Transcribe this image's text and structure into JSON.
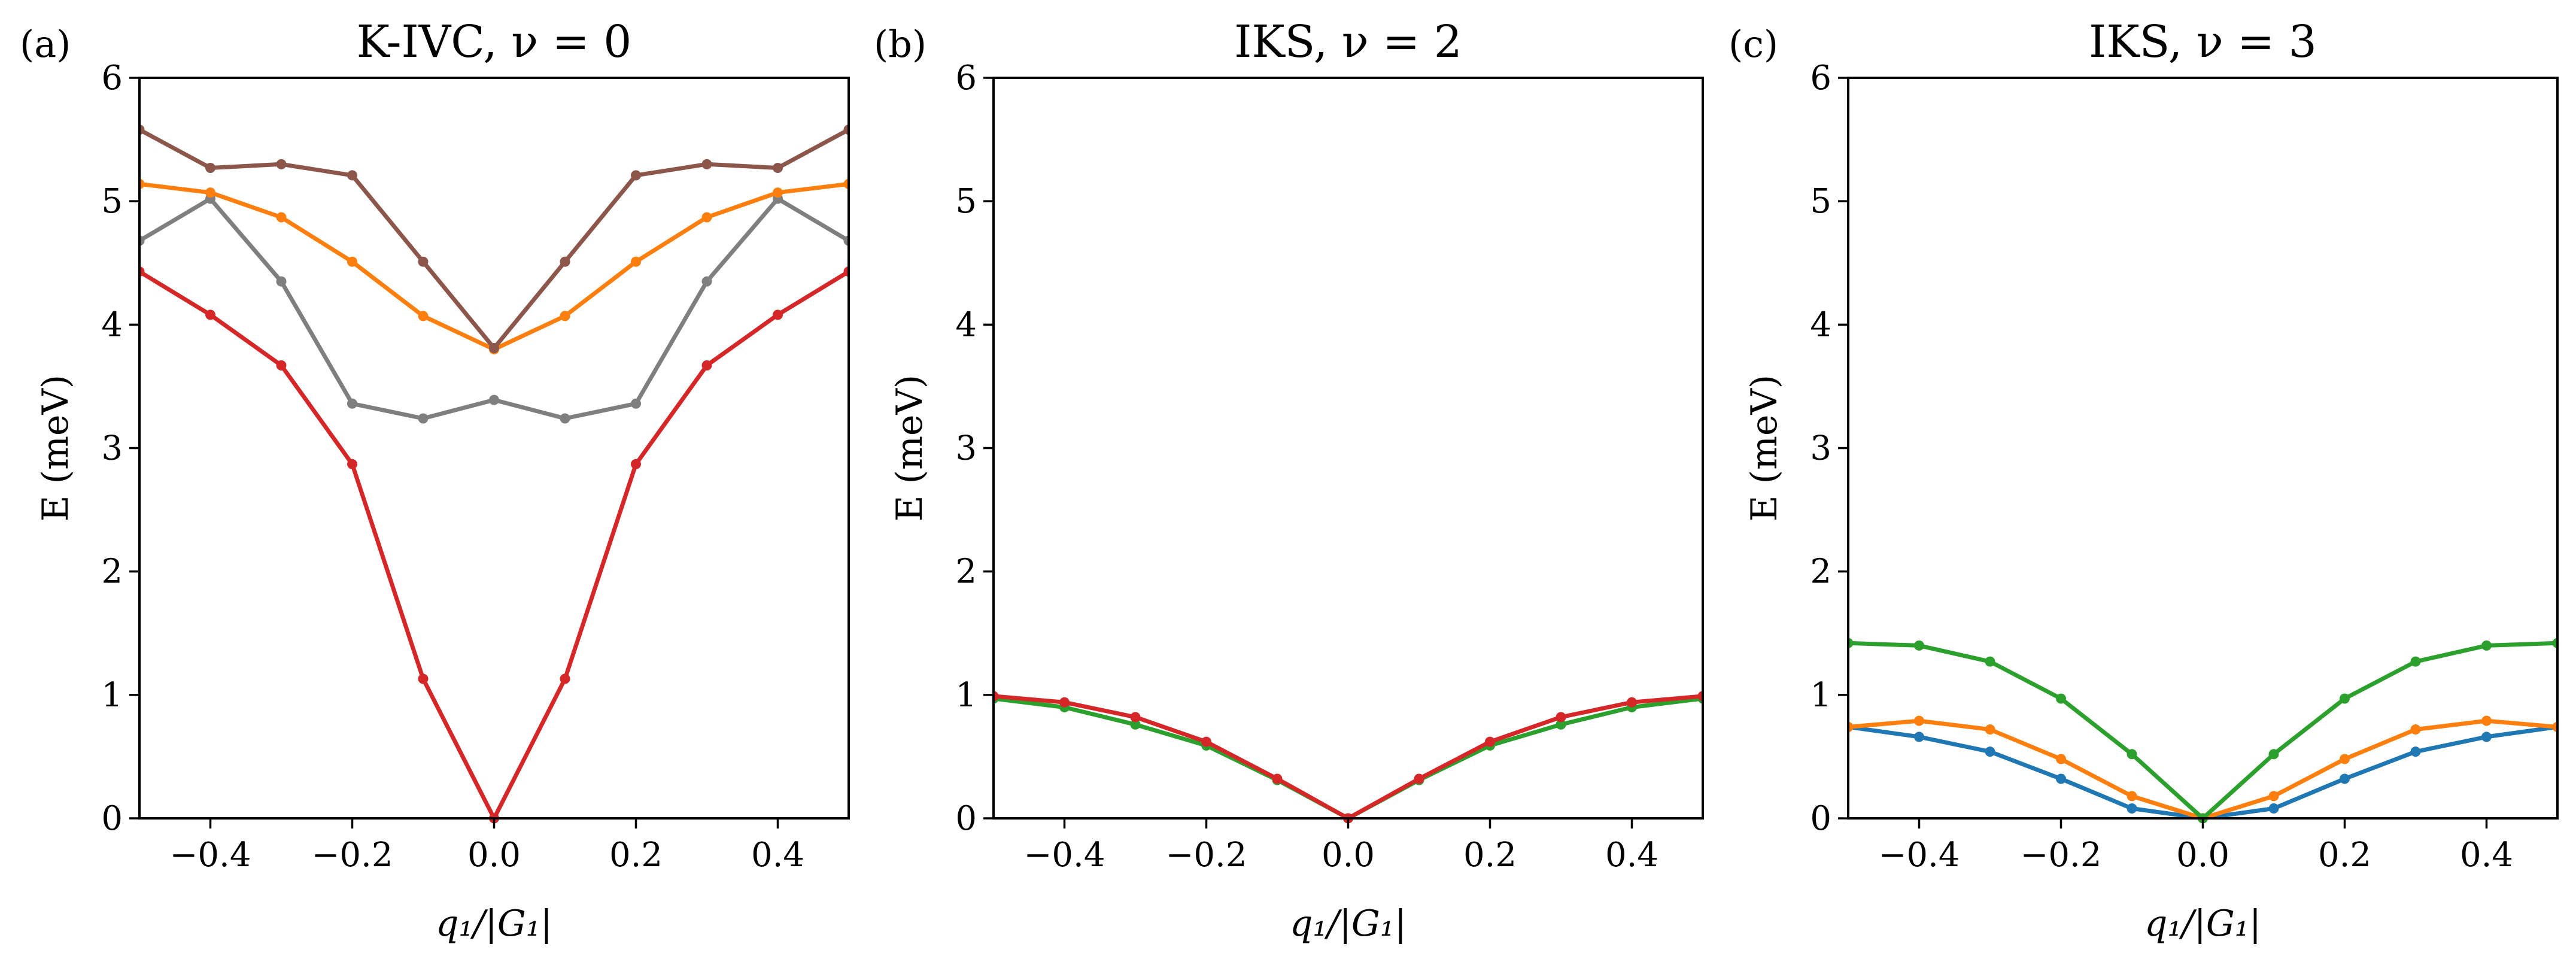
{
  "chart_data": [
    {
      "type": "line",
      "panel_label": "(a)",
      "title": "K-IVC, ν = 0",
      "xlabel": "q₁/|G₁|",
      "ylabel": "E (meV)",
      "xlim": [
        -0.5,
        0.5
      ],
      "ylim": [
        0,
        6
      ],
      "xticks": [
        -0.4,
        -0.2,
        0.0,
        0.2,
        0.4
      ],
      "xtick_labels": [
        "−0.4",
        "−0.2",
        "0.0",
        "0.2",
        "0.4"
      ],
      "yticks": [
        0,
        1,
        2,
        3,
        4,
        5,
        6
      ],
      "ytick_labels": [
        "0",
        "1",
        "2",
        "3",
        "4",
        "5",
        "6"
      ],
      "grid": false,
      "x": [
        -0.5,
        -0.4,
        -0.3,
        -0.2,
        -0.1,
        0.0,
        0.1,
        0.2,
        0.3,
        0.4,
        0.5
      ],
      "series": [
        {
          "name": "red",
          "color": "#d62728",
          "values": [
            4.43,
            4.08,
            3.67,
            2.87,
            1.13,
            0.0,
            1.13,
            2.87,
            3.67,
            4.08,
            4.43
          ]
        },
        {
          "name": "gray",
          "color": "#7f7f7f",
          "values": [
            4.68,
            5.02,
            4.35,
            3.36,
            3.24,
            3.39,
            3.24,
            3.36,
            4.35,
            5.02,
            4.68
          ]
        },
        {
          "name": "orange",
          "color": "#ff7f0e",
          "values": [
            5.14,
            5.07,
            4.87,
            4.51,
            4.07,
            3.8,
            4.07,
            4.51,
            4.87,
            5.07,
            5.14
          ]
        },
        {
          "name": "brown",
          "color": "#8c564b",
          "values": [
            5.58,
            5.27,
            5.3,
            5.21,
            4.51,
            3.81,
            4.51,
            5.21,
            5.3,
            5.27,
            5.58
          ]
        }
      ]
    },
    {
      "type": "line",
      "panel_label": "(b)",
      "title": "IKS, ν = 2",
      "xlabel": "q₁/|G₁|",
      "ylabel": "E (meV)",
      "xlim": [
        -0.5,
        0.5
      ],
      "ylim": [
        0,
        6
      ],
      "xticks": [
        -0.4,
        -0.2,
        0.0,
        0.2,
        0.4
      ],
      "xtick_labels": [
        "−0.4",
        "−0.2",
        "0.0",
        "0.2",
        "0.4"
      ],
      "yticks": [
        0,
        1,
        2,
        3,
        4,
        5,
        6
      ],
      "ytick_labels": [
        "0",
        "1",
        "2",
        "3",
        "4",
        "5",
        "6"
      ],
      "grid": false,
      "x": [
        -0.5,
        -0.4,
        -0.3,
        -0.2,
        -0.1,
        0.0,
        0.1,
        0.2,
        0.3,
        0.4,
        0.5
      ],
      "series": [
        {
          "name": "green",
          "color": "#2ca02c",
          "values": [
            0.97,
            0.9,
            0.76,
            0.59,
            0.31,
            0.0,
            0.31,
            0.59,
            0.76,
            0.9,
            0.97
          ]
        },
        {
          "name": "red",
          "color": "#d62728",
          "values": [
            0.99,
            0.94,
            0.82,
            0.62,
            0.32,
            0.0,
            0.32,
            0.62,
            0.82,
            0.94,
            0.99
          ]
        }
      ]
    },
    {
      "type": "line",
      "panel_label": "(c)",
      "title": "IKS, ν = 3",
      "xlabel": "q₁/|G₁|",
      "ylabel": "E (meV)",
      "xlim": [
        -0.5,
        0.5
      ],
      "ylim": [
        0,
        6
      ],
      "xticks": [
        -0.4,
        -0.2,
        0.0,
        0.2,
        0.4
      ],
      "xtick_labels": [
        "−0.4",
        "−0.2",
        "0.0",
        "0.2",
        "0.4"
      ],
      "yticks": [
        0,
        1,
        2,
        3,
        4,
        5,
        6
      ],
      "ytick_labels": [
        "0",
        "1",
        "2",
        "3",
        "4",
        "5",
        "6"
      ],
      "grid": false,
      "x": [
        -0.5,
        -0.4,
        -0.3,
        -0.2,
        -0.1,
        0.0,
        0.1,
        0.2,
        0.3,
        0.4,
        0.5
      ],
      "series": [
        {
          "name": "blue",
          "color": "#1f77b4",
          "values": [
            0.74,
            0.66,
            0.54,
            0.32,
            0.08,
            0.0,
            0.08,
            0.32,
            0.54,
            0.66,
            0.74
          ]
        },
        {
          "name": "orange",
          "color": "#ff7f0e",
          "values": [
            0.74,
            0.79,
            0.72,
            0.48,
            0.18,
            0.0,
            0.18,
            0.48,
            0.72,
            0.79,
            0.74
          ]
        },
        {
          "name": "green",
          "color": "#2ca02c",
          "values": [
            1.42,
            1.4,
            1.27,
            0.97,
            0.52,
            0.0,
            0.52,
            0.97,
            1.27,
            1.4,
            1.42
          ]
        }
      ]
    }
  ]
}
